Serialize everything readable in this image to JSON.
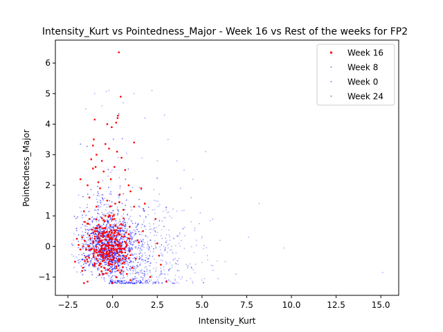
{
  "chart_data": {
    "type": "scatter",
    "title": "Intensity_Kurt vs Pointedness_Major - Week 16 vs Rest of the weeks for FP2",
    "xlabel": "Intensity_Kurt",
    "ylabel": "Pointedness_Major",
    "xlim": [
      -3.2,
      16.0
    ],
    "ylim": [
      -1.6,
      6.75
    ],
    "xticks": [
      -2.5,
      0.0,
      2.5,
      5.0,
      7.5,
      10.0,
      12.5,
      15.0
    ],
    "xtick_labels": [
      "−2.5",
      "0.0",
      "2.5",
      "5.0",
      "7.5",
      "10.0",
      "12.5",
      "15.0"
    ],
    "yticks": [
      -1,
      0,
      1,
      2,
      3,
      4,
      5,
      6
    ],
    "ytick_labels": [
      "−1",
      "0",
      "1",
      "2",
      "3",
      "4",
      "5",
      "6"
    ],
    "grid": false,
    "legend_position": "top-right",
    "series": [
      {
        "name": "Week 16",
        "color": "#ff0000",
        "marker": "square",
        "opacity": 1.0,
        "points": [
          [
            0.35,
            6.35
          ],
          [
            0.45,
            4.9
          ],
          [
            0.3,
            4.28
          ],
          [
            0.28,
            4.2
          ],
          [
            -1.0,
            4.15
          ],
          [
            -0.3,
            4.0
          ],
          [
            0.2,
            4.05
          ],
          [
            -0.05,
            3.9
          ],
          [
            -1.05,
            3.5
          ],
          [
            1.2,
            3.4
          ],
          [
            -1.1,
            3.3
          ],
          [
            -0.4,
            3.35
          ],
          [
            -0.9,
            3.0
          ],
          [
            0.25,
            3.1
          ],
          [
            -0.2,
            3.2
          ],
          [
            -1.2,
            2.85
          ],
          [
            -0.6,
            2.8
          ],
          [
            -0.95,
            2.6
          ],
          [
            -1.1,
            2.55
          ],
          [
            0.7,
            2.5
          ],
          [
            0.1,
            2.6
          ],
          [
            -0.5,
            2.45
          ],
          [
            -1.8,
            2.2
          ],
          [
            -1.4,
            2.0
          ],
          [
            -0.8,
            2.1
          ],
          [
            0.9,
            2.0
          ],
          [
            1.6,
            1.9
          ],
          [
            0.4,
            1.7
          ],
          [
            -1.3,
            1.6
          ],
          [
            1.8,
            1.4
          ],
          [
            -1.6,
            1.15
          ],
          [
            1.2,
            1.3
          ],
          [
            -1.55,
            0.8
          ],
          [
            2.4,
            0.9
          ],
          [
            1.7,
            0.5
          ],
          [
            -1.7,
            0.3
          ],
          [
            -2.0,
            0.25
          ],
          [
            -1.9,
            0.05
          ],
          [
            2.5,
            0.1
          ],
          [
            -1.8,
            -0.1
          ],
          [
            2.6,
            -0.3
          ],
          [
            -2.1,
            -0.5
          ],
          [
            2.7,
            -0.6
          ],
          [
            -1.7,
            -0.8
          ],
          [
            3.0,
            -1.15
          ],
          [
            -1.6,
            -1.2
          ],
          [
            2.1,
            -1.0
          ],
          [
            -1.4,
            -1.15
          ],
          [
            0.0,
            -1.2
          ],
          [
            1.0,
            -1.1
          ],
          [
            -0.4,
            1.0
          ],
          [
            0.3,
            0.6
          ],
          [
            -0.6,
            0.2
          ],
          [
            0.7,
            -0.2
          ],
          [
            -0.2,
            -0.5
          ],
          [
            0.5,
            -0.8
          ],
          [
            -0.8,
            -0.3
          ],
          [
            0.1,
            0.9
          ],
          [
            -0.3,
            1.5
          ],
          [
            0.6,
            1.2
          ],
          [
            -1.0,
            0.5
          ],
          [
            0.9,
            0.4
          ],
          [
            -1.2,
            -0.1
          ],
          [
            1.3,
            -0.4
          ],
          [
            -0.5,
            -0.9
          ],
          [
            0.2,
            -1.0
          ],
          [
            -0.9,
            1.3
          ],
          [
            1.0,
            1.8
          ],
          [
            -0.1,
            2.2
          ],
          [
            0.5,
            2.9
          ],
          [
            -0.7,
            1.9
          ],
          [
            1.4,
            0.2
          ],
          [
            -1.3,
            0.9
          ],
          [
            0.8,
            -0.9
          ],
          [
            -0.05,
            0.3
          ],
          [
            0.35,
            -0.4
          ],
          [
            -0.45,
            0.6
          ],
          [
            1.1,
            -0.7
          ],
          [
            -1.0,
            -0.6
          ],
          [
            0.15,
            1.4
          ]
        ]
      },
      {
        "name": "Week 8",
        "color": "#0000ff",
        "marker": "dot",
        "opacity": 0.35,
        "points": []
      },
      {
        "name": "Week 0",
        "color": "#0000ff",
        "marker": "dot",
        "opacity": 0.35,
        "points": []
      },
      {
        "name": "Week 24",
        "color": "#0000ff",
        "marker": "dot",
        "opacity": 0.35,
        "points": [
          [
            15.1,
            -0.85
          ],
          [
            9.6,
            -0.05
          ],
          [
            7.6,
            0.3
          ],
          [
            8.2,
            1.4
          ],
          [
            6.3,
            -0.5
          ],
          [
            5.2,
            3.1
          ],
          [
            4.5,
            2.2
          ],
          [
            4.0,
            2.5
          ],
          [
            3.1,
            3.5
          ],
          [
            2.9,
            4.3
          ],
          [
            3.8,
            1.9
          ],
          [
            5.6,
            0.9
          ],
          [
            6.9,
            -0.9
          ],
          [
            5.9,
            -1.05
          ],
          [
            4.6,
            0.6
          ],
          [
            3.5,
            -0.4
          ],
          [
            4.2,
            -0.7
          ],
          [
            3.0,
            1.2
          ],
          [
            2.5,
            2.8
          ],
          [
            2.2,
            5.1
          ],
          [
            1.2,
            5.0
          ],
          [
            -0.2,
            5.1
          ],
          [
            -1.0,
            5.0
          ],
          [
            0.6,
            4.7
          ],
          [
            -1.5,
            4.5
          ],
          [
            1.8,
            4.2
          ],
          [
            -0.6,
            4.6
          ],
          [
            5.0,
            -1.1
          ],
          [
            4.9,
            1.1
          ],
          [
            6.0,
            0.2
          ],
          [
            3.3,
            0.0
          ],
          [
            3.9,
            -1.0
          ],
          [
            2.8,
            -0.9
          ],
          [
            4.4,
            1.6
          ],
          [
            3.6,
            2.8
          ],
          [
            5.3,
            -0.3
          ]
        ]
      }
    ],
    "cloud_density_note": "dense blue cloud of Week 0/8/24 points concentrated at Intensity_Kurt -2 to 3, Pointedness_Major -1.2 to 2"
  }
}
